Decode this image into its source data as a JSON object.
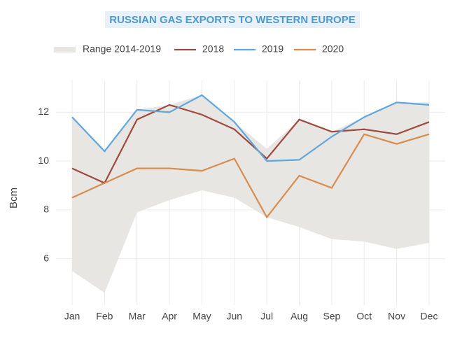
{
  "chart_data": {
    "type": "line",
    "title": "RUSSIAN GAS EXPORTS TO WESTERN EUROPE",
    "y_label": "Bcm",
    "categories": [
      "Jan",
      "Feb",
      "Mar",
      "Apr",
      "May",
      "Jun",
      "Jul",
      "Aug",
      "Sep",
      "Oct",
      "Nov",
      "Dec"
    ],
    "range": {
      "name": "Range 2014-2019",
      "color": "#e8e6e3",
      "upper": [
        11.8,
        10.4,
        12.1,
        12.3,
        12.7,
        11.6,
        10.5,
        11.7,
        11.2,
        11.8,
        12.4,
        12.4
      ],
      "lower": [
        5.5,
        4.6,
        7.9,
        8.4,
        8.8,
        8.5,
        7.7,
        7.3,
        6.8,
        6.7,
        6.4,
        6.65
      ]
    },
    "series": [
      {
        "name": "2018",
        "color": "#a0493d",
        "values": [
          9.7,
          9.1,
          11.7,
          12.3,
          11.9,
          11.3,
          10.1,
          11.7,
          11.2,
          11.3,
          11.1,
          11.6
        ]
      },
      {
        "name": "2019",
        "color": "#5ea8e0",
        "values": [
          11.8,
          10.4,
          12.1,
          12.0,
          12.7,
          11.6,
          10.0,
          10.05,
          11.0,
          11.8,
          12.4,
          12.3
        ]
      },
      {
        "name": "2020",
        "color": "#d98c4c",
        "values": [
          8.5,
          9.1,
          9.7,
          9.7,
          9.6,
          10.1,
          7.7,
          9.4,
          8.9,
          11.1,
          10.7,
          11.1
        ]
      }
    ],
    "ylim": [
      4.1,
      13.3
    ],
    "yticks": [
      6,
      8,
      10,
      12
    ],
    "grid": true
  }
}
